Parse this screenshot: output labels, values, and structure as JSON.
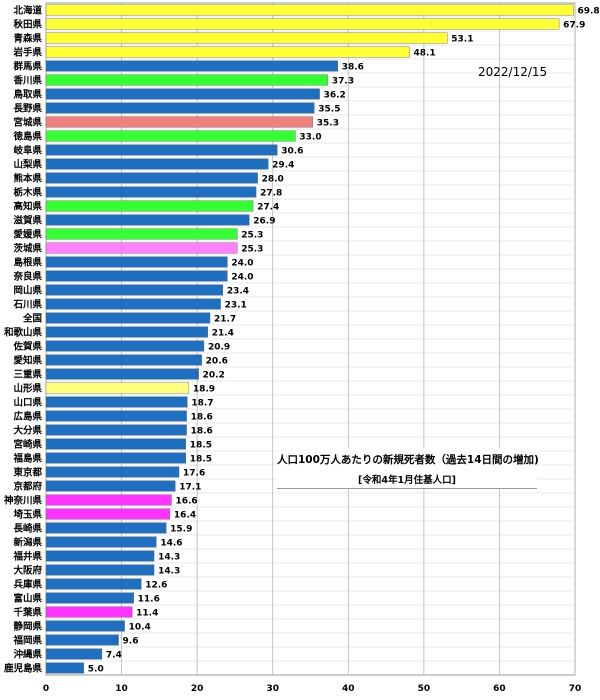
{
  "chart_data": {
    "type": "bar",
    "orientation": "horizontal",
    "date": "2022/12/15",
    "annotation_title": "人口100万人あたりの新規死者数（過去14日間の増加)",
    "annotation_subtitle": "[令和4年1月住基人口]",
    "xlim": [
      0,
      70
    ],
    "x_ticks": [
      0,
      10,
      20,
      30,
      40,
      50,
      60,
      70
    ],
    "grid": true,
    "categories": [
      "北海道",
      "秋田県",
      "青森県",
      "岩手県",
      "群馬県",
      "香川県",
      "鳥取県",
      "長野県",
      "宮城県",
      "徳島県",
      "岐阜県",
      "山梨県",
      "熊本県",
      "栃木県",
      "高知県",
      "滋賀県",
      "愛媛県",
      "茨城県",
      "島根県",
      "奈良県",
      "岡山県",
      "石川県",
      "全国",
      "和歌山県",
      "佐賀県",
      "愛知県",
      "三重県",
      "山形県",
      "山口県",
      "広島県",
      "大分県",
      "宮崎県",
      "福島県",
      "東京都",
      "京都府",
      "神奈川県",
      "埼玉県",
      "長崎県",
      "新潟県",
      "福井県",
      "大阪府",
      "兵庫県",
      "富山県",
      "千葉県",
      "静岡県",
      "福岡県",
      "沖縄県",
      "鹿児島県"
    ],
    "values": [
      69.8,
      67.9,
      53.1,
      48.1,
      38.6,
      37.3,
      36.2,
      35.5,
      35.3,
      33.0,
      30.6,
      29.4,
      28.0,
      27.8,
      27.4,
      26.9,
      25.3,
      25.3,
      24.0,
      24.0,
      23.4,
      23.1,
      21.7,
      21.4,
      20.9,
      20.6,
      20.2,
      18.9,
      18.7,
      18.6,
      18.6,
      18.5,
      18.5,
      17.6,
      17.1,
      16.6,
      16.4,
      15.9,
      14.6,
      14.3,
      14.3,
      12.6,
      11.6,
      11.4,
      10.4,
      9.6,
      7.4,
      5.0
    ],
    "value_labels": [
      "69.8",
      "67.9",
      "53.1",
      "48.1",
      "38.6",
      "37.3",
      "36.2",
      "35.5",
      "35.3",
      "33.0",
      "30.6",
      "29.4",
      "28.0",
      "27.8",
      "27.4",
      "26.9",
      "25.3",
      "25.3",
      "24.0",
      "24.0",
      "23.4",
      "23.1",
      "21.7",
      "21.4",
      "20.9",
      "20.6",
      "20.2",
      "18.9",
      "18.7",
      "18.6",
      "18.6",
      "18.5",
      "18.5",
      "17.6",
      "17.1",
      "16.6",
      "16.4",
      "15.9",
      "14.6",
      "14.3",
      "14.3",
      "12.6",
      "11.6",
      "11.4",
      "10.4",
      "9.6",
      "7.4",
      "5.0"
    ],
    "colors": [
      "#ffff33",
      "#ffff33",
      "#ffff33",
      "#ffff33",
      "#1f6fc0",
      "#33ff33",
      "#1f6fc0",
      "#1f6fc0",
      "#f08080",
      "#33ff33",
      "#1f6fc0",
      "#1f6fc0",
      "#1f6fc0",
      "#1f6fc0",
      "#33ff33",
      "#1f6fc0",
      "#33ff33",
      "#ff80ff",
      "#1f6fc0",
      "#1f6fc0",
      "#1f6fc0",
      "#1f6fc0",
      "#1f6fc0",
      "#1f6fc0",
      "#1f6fc0",
      "#1f6fc0",
      "#1f6fc0",
      "#ffff80",
      "#1f6fc0",
      "#1f6fc0",
      "#1f6fc0",
      "#1f6fc0",
      "#1f6fc0",
      "#1f6fc0",
      "#1f6fc0",
      "#ff33ff",
      "#ff33ff",
      "#1f6fc0",
      "#1f6fc0",
      "#1f6fc0",
      "#1f6fc0",
      "#1f6fc0",
      "#1f6fc0",
      "#ff33ff",
      "#1f6fc0",
      "#1f6fc0",
      "#1f6fc0",
      "#1f6fc0"
    ]
  }
}
